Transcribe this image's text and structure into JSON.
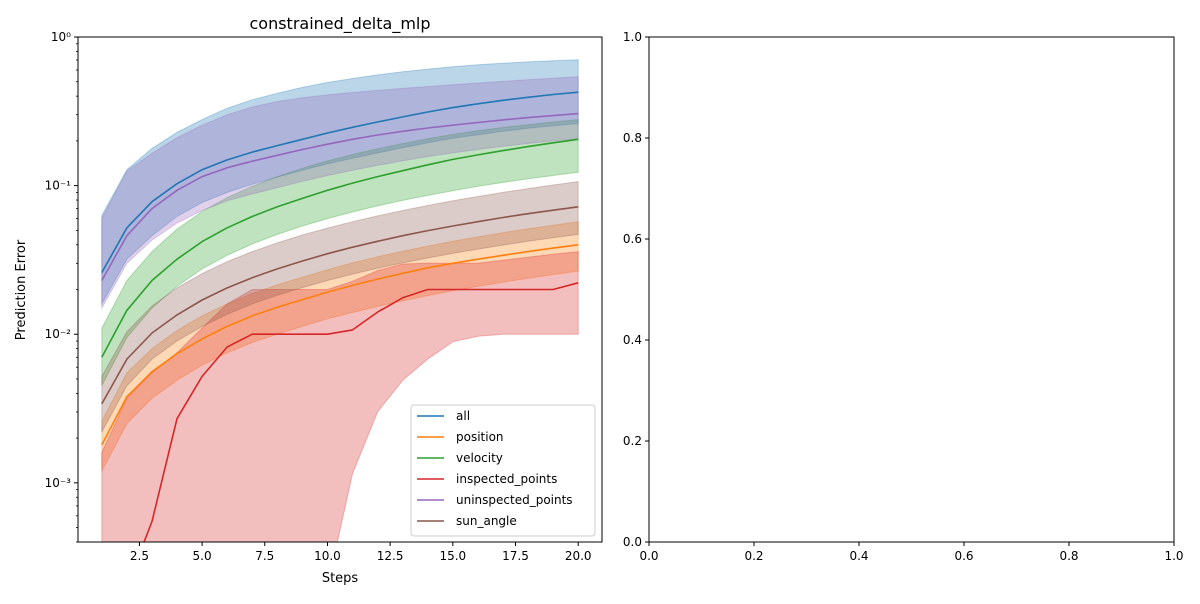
{
  "chart_data": [
    {
      "type": "line",
      "title": "constrained_delta_mlp",
      "xlabel": "Steps",
      "ylabel": "Prediction Error",
      "yscale": "log",
      "xlim": [
        0.05,
        20.95
      ],
      "ylim": [
        0.0004,
        1.0
      ],
      "x_ticks": [
        2.5,
        5.0,
        7.5,
        10.0,
        12.5,
        15.0,
        17.5,
        20.0
      ],
      "x_tick_labels": [
        "2.5",
        "5.0",
        "7.5",
        "10.0",
        "12.5",
        "15.0",
        "17.5",
        "20.0"
      ],
      "y_ticks": [
        0.001,
        0.01,
        0.1,
        1.0
      ],
      "y_tick_labels": [
        "10⁻³",
        "10⁻²",
        "10⁻¹",
        "10⁰"
      ],
      "legend_position": "lower-right",
      "x": [
        1,
        2,
        3,
        4,
        5,
        6,
        7,
        8,
        9,
        10,
        11,
        12,
        13,
        14,
        15,
        16,
        17,
        18,
        19,
        20
      ],
      "series": [
        {
          "name": "all",
          "color": "#1f77b4",
          "values": [
            0.026,
            0.052,
            0.078,
            0.103,
            0.128,
            0.149,
            0.168,
            0.186,
            0.205,
            0.226,
            0.247,
            0.268,
            0.29,
            0.313,
            0.335,
            0.355,
            0.375,
            0.393,
            0.41,
            0.425
          ],
          "lower": [
            0.016,
            0.032,
            0.046,
            0.062,
            0.077,
            0.09,
            0.102,
            0.114,
            0.127,
            0.14,
            0.153,
            0.166,
            0.18,
            0.194,
            0.208,
            0.22,
            0.232,
            0.243,
            0.253,
            0.262
          ],
          "upper": [
            0.063,
            0.128,
            0.178,
            0.228,
            0.278,
            0.332,
            0.378,
            0.418,
            0.458,
            0.494,
            0.526,
            0.556,
            0.584,
            0.608,
            0.63,
            0.65,
            0.666,
            0.68,
            0.692,
            0.702
          ]
        },
        {
          "name": "position",
          "color": "#ff7f0e",
          "values": [
            0.0018,
            0.0038,
            0.0056,
            0.0074,
            0.0093,
            0.0113,
            0.0133,
            0.0152,
            0.0171,
            0.0192,
            0.0213,
            0.0235,
            0.0257,
            0.028,
            0.03,
            0.032,
            0.034,
            0.036,
            0.038,
            0.04
          ],
          "lower": [
            0.0012,
            0.0025,
            0.0037,
            0.0049,
            0.0062,
            0.0075,
            0.0088,
            0.01,
            0.0113,
            0.0127,
            0.014,
            0.0154,
            0.0168,
            0.0182,
            0.0196,
            0.021,
            0.0224,
            0.0238,
            0.0252,
            0.0266
          ],
          "upper": [
            0.0026,
            0.0055,
            0.008,
            0.0106,
            0.0133,
            0.016,
            0.0188,
            0.0215,
            0.0242,
            0.0272,
            0.0302,
            0.0332,
            0.0362,
            0.0392,
            0.0422,
            0.0452,
            0.0482,
            0.0512,
            0.0542,
            0.0572
          ]
        },
        {
          "name": "velocity",
          "color": "#2ca02c",
          "values": [
            0.007,
            0.0145,
            0.023,
            0.032,
            0.042,
            0.052,
            0.062,
            0.072,
            0.082,
            0.093,
            0.104,
            0.115,
            0.126,
            0.138,
            0.15,
            0.161,
            0.172,
            0.183,
            0.194,
            0.205
          ],
          "lower": [
            0.0045,
            0.0095,
            0.015,
            0.021,
            0.0275,
            0.034,
            0.0405,
            0.047,
            0.0535,
            0.06,
            0.0665,
            0.073,
            0.0795,
            0.086,
            0.0925,
            0.099,
            0.105,
            0.111,
            0.117,
            0.123
          ],
          "upper": [
            0.011,
            0.023,
            0.036,
            0.051,
            0.067,
            0.083,
            0.099,
            0.115,
            0.131,
            0.147,
            0.162,
            0.177,
            0.192,
            0.207,
            0.221,
            0.234,
            0.246,
            0.257,
            0.268,
            0.278
          ]
        },
        {
          "name": "inspected_points",
          "color": "#d62728",
          "values": [
            0.0,
            0.0,
            0.00055,
            0.0027,
            0.0052,
            0.0082,
            0.01,
            0.01,
            0.01,
            0.01,
            0.0107,
            0.0141,
            0.0176,
            0.02,
            0.02,
            0.02,
            0.02,
            0.02,
            0.02,
            0.0222
          ],
          "lower": [
            0.0,
            0.0,
            0.0,
            0.0,
            0.0,
            0.0,
            0.0,
            0.0,
            0.0,
            0.0,
            0.00115,
            0.003,
            0.0049,
            0.0068,
            0.0089,
            0.0097,
            0.01,
            0.01,
            0.01,
            0.01
          ],
          "upper": [
            0.0016,
            0.0037,
            0.0055,
            0.0075,
            0.011,
            0.016,
            0.02,
            0.02,
            0.02,
            0.02,
            0.0227,
            0.0268,
            0.0297,
            0.03,
            0.03,
            0.03,
            0.0315,
            0.033,
            0.0345,
            0.0359
          ]
        },
        {
          "name": "uninspected_points",
          "color": "#9467bd",
          "values": [
            0.023,
            0.046,
            0.07,
            0.093,
            0.115,
            0.132,
            0.146,
            0.16,
            0.175,
            0.19,
            0.205,
            0.219,
            0.232,
            0.244,
            0.255,
            0.266,
            0.277,
            0.287,
            0.296,
            0.305
          ],
          "lower": [
            0.015,
            0.03,
            0.043,
            0.056,
            0.068,
            0.079,
            0.088,
            0.097,
            0.107,
            0.117,
            0.127,
            0.137,
            0.147,
            0.157,
            0.166,
            0.175,
            0.184,
            0.192,
            0.2,
            0.207
          ],
          "upper": [
            0.06,
            0.125,
            0.165,
            0.21,
            0.255,
            0.3,
            0.338,
            0.368,
            0.39,
            0.408,
            0.423,
            0.437,
            0.451,
            0.464,
            0.477,
            0.49,
            0.503,
            0.516,
            0.528,
            0.54
          ]
        },
        {
          "name": "sun_angle",
          "color": "#8c564b",
          "values": [
            0.0034,
            0.0068,
            0.0102,
            0.0135,
            0.017,
            0.0205,
            0.024,
            0.0275,
            0.0311,
            0.0348,
            0.0385,
            0.0422,
            0.046,
            0.0498,
            0.0535,
            0.0572,
            0.061,
            0.0647,
            0.0683,
            0.072
          ],
          "lower": [
            0.0022,
            0.0045,
            0.0068,
            0.009,
            0.0113,
            0.0136,
            0.016,
            0.0183,
            0.0206,
            0.023,
            0.0254,
            0.0278,
            0.0302,
            0.0326,
            0.035,
            0.0374,
            0.0398,
            0.0422,
            0.0446,
            0.047
          ],
          "upper": [
            0.0052,
            0.0104,
            0.0155,
            0.0205,
            0.0256,
            0.0308,
            0.036,
            0.0412,
            0.0465,
            0.0518,
            0.0572,
            0.0626,
            0.068,
            0.0735,
            0.079,
            0.0845,
            0.09,
            0.0955,
            0.101,
            0.1065
          ]
        }
      ]
    },
    {
      "type": "line",
      "title": "",
      "xlim": [
        0.0,
        1.0
      ],
      "ylim": [
        0.0,
        1.0
      ],
      "x_ticks": [
        0.0,
        0.2,
        0.4,
        0.6,
        0.8,
        1.0
      ],
      "x_tick_labels": [
        "0.0",
        "0.2",
        "0.4",
        "0.6",
        "0.8",
        "1.0"
      ],
      "y_ticks": [
        0.0,
        0.2,
        0.4,
        0.6,
        0.8,
        1.0
      ],
      "y_tick_labels": [
        "0.0",
        "0.2",
        "0.4",
        "0.6",
        "0.8",
        "1.0"
      ],
      "series": []
    }
  ]
}
